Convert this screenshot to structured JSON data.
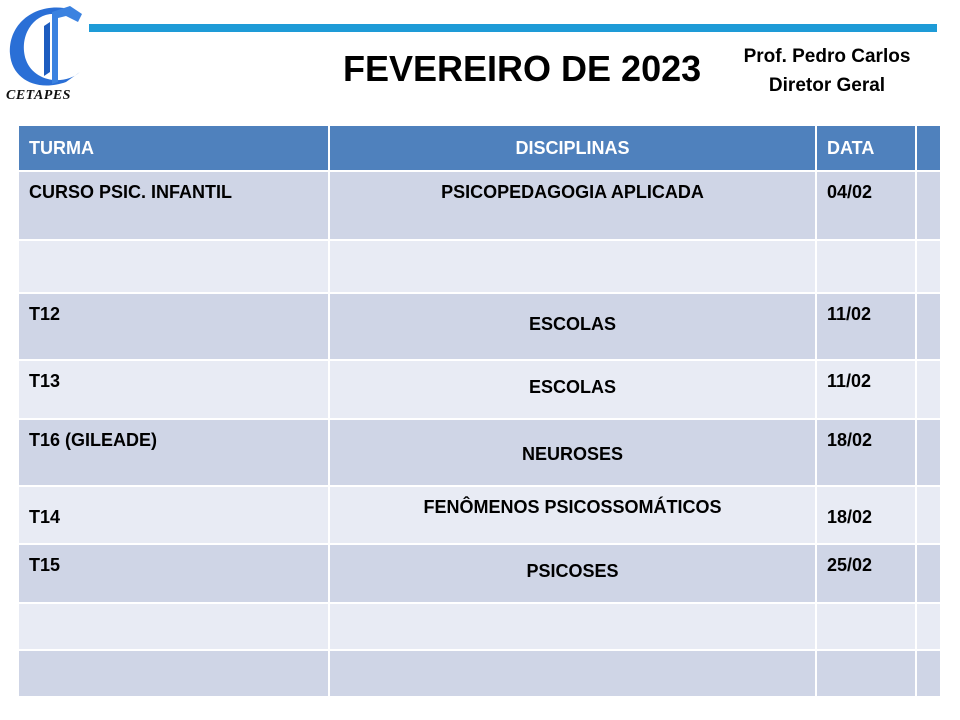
{
  "logo": {
    "text": "CETAPES",
    "color": "#2a6fd6"
  },
  "header": {
    "title": "FEVEREIRO DE 2023",
    "prof_name": "Prof. Pedro Carlos",
    "prof_role": "Diretor Geral",
    "line_color": "#1e9bd7"
  },
  "table": {
    "header_color": "#4f81bd",
    "columns": [
      "TURMA",
      "DISCIPLINAS",
      "DATA",
      ""
    ],
    "rows": [
      {
        "turma": "CURSO PSIC. INFANTIL",
        "disciplina": "PSICOPEDAGOGIA APLICADA",
        "data": "04/02"
      },
      {
        "turma": "",
        "disciplina": "",
        "data": ""
      },
      {
        "turma": "T12",
        "disciplina": "ESCOLAS",
        "data": "11/02"
      },
      {
        "turma": "T13",
        "disciplina": "ESCOLAS",
        "data": "11/02"
      },
      {
        "turma": "T16 (GILEADE)",
        "disciplina": "NEUROSES",
        "data": "18/02"
      },
      {
        "turma": "T14",
        "disciplina": "FENÔMENOS PSICOSSOMÁTICOS",
        "data": "18/02"
      },
      {
        "turma": "T15",
        "disciplina": "PSICOSES",
        "data": "25/02"
      },
      {
        "turma": "",
        "disciplina": "",
        "data": ""
      },
      {
        "turma": "",
        "disciplina": "",
        "data": ""
      }
    ]
  }
}
